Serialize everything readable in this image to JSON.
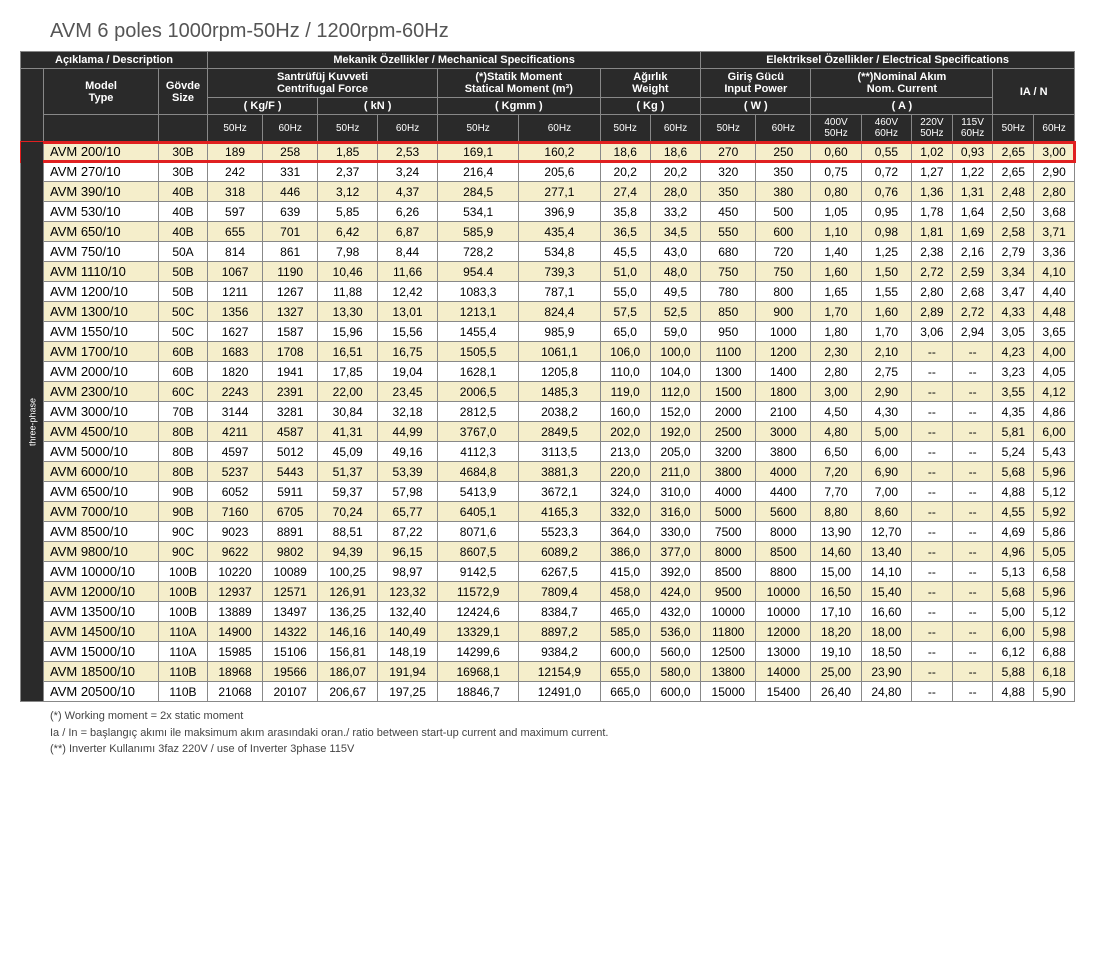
{
  "title": "AVM 6 poles 1000rpm-50Hz  / 1200rpm-60Hz",
  "section_headers": {
    "desc": "Açıklama / Description",
    "mech": "Mekanik Özellikler / Mechanical Specifications",
    "elec": "Elektriksel Özellikler / Electrical Specifications"
  },
  "group_headers": {
    "model": "Model\nType",
    "size": "Gövde\nSize",
    "centrifugal": "Santrüfüj  Kuvveti\nCentrifugal Force",
    "centrifugal_kgf": "( Kg/F )",
    "centrifugal_kn": "( kN )",
    "static": "(*)Statik Moment\nStatical Moment (m³)",
    "static_unit": "( Kgmm )",
    "weight": "Ağırlık\nWeight",
    "weight_unit": "( Kg )",
    "power": "Giriş Gücü\nInput Power",
    "power_unit": "( W )",
    "current": "(**)Nominal Akım\nNom. Current",
    "current_unit": "( A )",
    "ian": "IA / N"
  },
  "sub_headers": [
    "50Hz",
    "60Hz",
    "50Hz",
    "60Hz",
    "50Hz",
    "60Hz",
    "50Hz",
    "60Hz",
    "50Hz",
    "60Hz",
    "400V\n50Hz",
    "460V\n60Hz",
    "220V\n50Hz",
    "115V\n60Hz",
    "50Hz",
    "60Hz"
  ],
  "side_label": "three-phase",
  "rows": [
    {
      "model": "AVM 200/10",
      "size": "30B",
      "v": [
        "189",
        "258",
        "1,85",
        "2,53",
        "169,1",
        "160,2",
        "18,6",
        "18,6",
        "270",
        "250",
        "0,60",
        "0,55",
        "1,02",
        "0,93",
        "2,65",
        "3,00"
      ],
      "hl": true
    },
    {
      "model": "AVM 270/10",
      "size": "30B",
      "v": [
        "242",
        "331",
        "2,37",
        "3,24",
        "216,4",
        "205,6",
        "20,2",
        "20,2",
        "320",
        "350",
        "0,75",
        "0,72",
        "1,27",
        "1,22",
        "2,65",
        "2,90"
      ]
    },
    {
      "model": "AVM 390/10",
      "size": "40B",
      "v": [
        "318",
        "446",
        "3,12",
        "4,37",
        "284,5",
        "277,1",
        "27,4",
        "28,0",
        "350",
        "380",
        "0,80",
        "0,76",
        "1,36",
        "1,31",
        "2,48",
        "2,80"
      ]
    },
    {
      "model": "AVM 530/10",
      "size": "40B",
      "v": [
        "597",
        "639",
        "5,85",
        "6,26",
        "534,1",
        "396,9",
        "35,8",
        "33,2",
        "450",
        "500",
        "1,05",
        "0,95",
        "1,78",
        "1,64",
        "2,50",
        "3,68"
      ]
    },
    {
      "model": "AVM 650/10",
      "size": "40B",
      "v": [
        "655",
        "701",
        "6,42",
        "6,87",
        "585,9",
        "435,4",
        "36,5",
        "34,5",
        "550",
        "600",
        "1,10",
        "0,98",
        "1,81",
        "1,69",
        "2,58",
        "3,71"
      ]
    },
    {
      "model": "AVM 750/10",
      "size": "50A",
      "v": [
        "814",
        "861",
        "7,98",
        "8,44",
        "728,2",
        "534,8",
        "45,5",
        "43,0",
        "680",
        "720",
        "1,40",
        "1,25",
        "2,38",
        "2,16",
        "2,79",
        "3,36"
      ]
    },
    {
      "model": "AVM 1110/10",
      "size": "50B",
      "v": [
        "1067",
        "1190",
        "10,46",
        "11,66",
        "954.4",
        "739,3",
        "51,0",
        "48,0",
        "750",
        "750",
        "1,60",
        "1,50",
        "2,72",
        "2,59",
        "3,34",
        "4,10"
      ]
    },
    {
      "model": "AVM 1200/10",
      "size": "50B",
      "v": [
        "1211",
        "1267",
        "11,88",
        "12,42",
        "1083,3",
        "787,1",
        "55,0",
        "49,5",
        "780",
        "800",
        "1,65",
        "1,55",
        "2,80",
        "2,68",
        "3,47",
        "4,40"
      ]
    },
    {
      "model": "AVM 1300/10",
      "size": "50C",
      "v": [
        "1356",
        "1327",
        "13,30",
        "13,01",
        "1213,1",
        "824,4",
        "57,5",
        "52,5",
        "850",
        "900",
        "1,70",
        "1,60",
        "2,89",
        "2,72",
        "4,33",
        "4,48"
      ]
    },
    {
      "model": "AVM 1550/10",
      "size": "50C",
      "v": [
        "1627",
        "1587",
        "15,96",
        "15,56",
        "1455,4",
        "985,9",
        "65,0",
        "59,0",
        "950",
        "1000",
        "1,80",
        "1,70",
        "3,06",
        "2,94",
        "3,05",
        "3,65"
      ]
    },
    {
      "model": "AVM 1700/10",
      "size": "60B",
      "v": [
        "1683",
        "1708",
        "16,51",
        "16,75",
        "1505,5",
        "1061,1",
        "106,0",
        "100,0",
        "1100",
        "1200",
        "2,30",
        "2,10",
        "--",
        "--",
        "4,23",
        "4,00"
      ]
    },
    {
      "model": "AVM 2000/10",
      "size": "60B",
      "v": [
        "1820",
        "1941",
        "17,85",
        "19,04",
        "1628,1",
        "1205,8",
        "110,0",
        "104,0",
        "1300",
        "1400",
        "2,80",
        "2,75",
        "--",
        "--",
        "3,23",
        "4,05"
      ]
    },
    {
      "model": "AVM 2300/10",
      "size": "60C",
      "v": [
        "2243",
        "2391",
        "22,00",
        "23,45",
        "2006,5",
        "1485,3",
        "119,0",
        "112,0",
        "1500",
        "1800",
        "3,00",
        "2,90",
        "--",
        "--",
        "3,55",
        "4,12"
      ]
    },
    {
      "model": "AVM 3000/10",
      "size": "70B",
      "v": [
        "3144",
        "3281",
        "30,84",
        "32,18",
        "2812,5",
        "2038,2",
        "160,0",
        "152,0",
        "2000",
        "2100",
        "4,50",
        "4,30",
        "--",
        "--",
        "4,35",
        "4,86"
      ]
    },
    {
      "model": "AVM 4500/10",
      "size": "80B",
      "v": [
        "4211",
        "4587",
        "41,31",
        "44,99",
        "3767,0",
        "2849,5",
        "202,0",
        "192,0",
        "2500",
        "3000",
        "4,80",
        "5,00",
        "--",
        "--",
        "5,81",
        "6,00"
      ]
    },
    {
      "model": "AVM 5000/10",
      "size": "80B",
      "v": [
        "4597",
        "5012",
        "45,09",
        "49,16",
        "4112,3",
        "3113,5",
        "213,0",
        "205,0",
        "3200",
        "3800",
        "6,50",
        "6,00",
        "--",
        "--",
        "5,24",
        "5,43"
      ]
    },
    {
      "model": "AVM 6000/10",
      "size": "80B",
      "v": [
        "5237",
        "5443",
        "51,37",
        "53,39",
        "4684,8",
        "3881,3",
        "220,0",
        "211,0",
        "3800",
        "4000",
        "7,20",
        "6,90",
        "--",
        "--",
        "5,68",
        "5,96"
      ]
    },
    {
      "model": "AVM 6500/10",
      "size": "90B",
      "v": [
        "6052",
        "5911",
        "59,37",
        "57,98",
        "5413,9",
        "3672,1",
        "324,0",
        "310,0",
        "4000",
        "4400",
        "7,70",
        "7,00",
        "--",
        "--",
        "4,88",
        "5,12"
      ]
    },
    {
      "model": "AVM 7000/10",
      "size": "90B",
      "v": [
        "7160",
        "6705",
        "70,24",
        "65,77",
        "6405,1",
        "4165,3",
        "332,0",
        "316,0",
        "5000",
        "5600",
        "8,80",
        "8,60",
        "--",
        "--",
        "4,55",
        "5,92"
      ]
    },
    {
      "model": "AVM 8500/10",
      "size": "90C",
      "v": [
        "9023",
        "8891",
        "88,51",
        "87,22",
        "8071,6",
        "5523,3",
        "364,0",
        "330,0",
        "7500",
        "8000",
        "13,90",
        "12,70",
        "--",
        "--",
        "4,69",
        "5,86"
      ]
    },
    {
      "model": "AVM 9800/10",
      "size": "90C",
      "v": [
        "9622",
        "9802",
        "94,39",
        "96,15",
        "8607,5",
        "6089,2",
        "386,0",
        "377,0",
        "8000",
        "8500",
        "14,60",
        "13,40",
        "--",
        "--",
        "4,96",
        "5,05"
      ]
    },
    {
      "model": "AVM 10000/10",
      "size": "100B",
      "v": [
        "10220",
        "10089",
        "100,25",
        "98,97",
        "9142,5",
        "6267,5",
        "415,0",
        "392,0",
        "8500",
        "8800",
        "15,00",
        "14,10",
        "--",
        "--",
        "5,13",
        "6,58"
      ]
    },
    {
      "model": "AVM 12000/10",
      "size": "100B",
      "v": [
        "12937",
        "12571",
        "126,91",
        "123,32",
        "11572,9",
        "7809,4",
        "458,0",
        "424,0",
        "9500",
        "10000",
        "16,50",
        "15,40",
        "--",
        "--",
        "5,68",
        "5,96"
      ]
    },
    {
      "model": "AVM 13500/10",
      "size": "100B",
      "v": [
        "13889",
        "13497",
        "136,25",
        "132,40",
        "12424,6",
        "8384,7",
        "465,0",
        "432,0",
        "10000",
        "10000",
        "17,10",
        "16,60",
        "--",
        "--",
        "5,00",
        "5,12"
      ]
    },
    {
      "model": "AVM 14500/10",
      "size": "110A",
      "v": [
        "14900",
        "14322",
        "146,16",
        "140,49",
        "13329,1",
        "8897,2",
        "585,0",
        "536,0",
        "11800",
        "12000",
        "18,20",
        "18,00",
        "--",
        "--",
        "6,00",
        "5,98"
      ]
    },
    {
      "model": "AVM 15000/10",
      "size": "110A",
      "v": [
        "15985",
        "15106",
        "156,81",
        "148,19",
        "14299,6",
        "9384,2",
        "600,0",
        "560,0",
        "12500",
        "13000",
        "19,10",
        "18,50",
        "--",
        "--",
        "6,12",
        "6,88"
      ]
    },
    {
      "model": "AVM 18500/10",
      "size": "110B",
      "v": [
        "18968",
        "19566",
        "186,07",
        "191,94",
        "16968,1",
        "12154,9",
        "655,0",
        "580,0",
        "13800",
        "14000",
        "25,00",
        "23,90",
        "--",
        "--",
        "5,88",
        "6,18"
      ]
    },
    {
      "model": "AVM 20500/10",
      "size": "110B",
      "v": [
        "21068",
        "20107",
        "206,67",
        "197,25",
        "18846,7",
        "12491,0",
        "665,0",
        "600,0",
        "15000",
        "15400",
        "26,40",
        "24,80",
        "--",
        "--",
        "4,88",
        "5,90"
      ]
    }
  ],
  "footnotes": [
    "(*) Working moment = 2x static moment",
    "Ia / In = başlangıç akımı ile maksimum akım arasındaki oran./ ratio between start-up current and maximum current.",
    "(**) Inverter Kullanımı 3faz 220V / use of Inverter 3phase 115V"
  ],
  "styling": {
    "title_fontsize": 20,
    "title_color": "#555555",
    "header_bg": "#2a2a2a",
    "header_fg": "#ffffff",
    "row_odd_bg": "#f5eecb",
    "row_even_bg": "#ffffff",
    "border_color": "#888888",
    "highlight_border": "#e02020",
    "cell_fontsize": 12,
    "subheader_fontsize": 10
  }
}
